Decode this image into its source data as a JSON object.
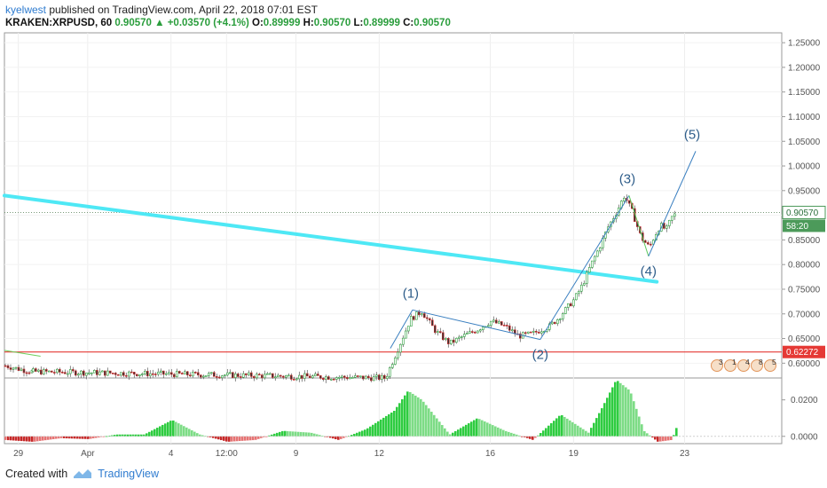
{
  "header": {
    "author": "kyelwest",
    "published_text": "published on TradingView.com, April 22, 2018 07:01 EST",
    "symbol": "KRAKEN:XRPUSD, 60",
    "last": "0.90570",
    "change": "+0.03570 (+4.1%)",
    "o_label": "O:",
    "o": "0.89999",
    "h_label": "H:",
    "h": "0.90570",
    "l_label": "L:",
    "l": "0.89999",
    "c_label": "C:",
    "c": "0.90570"
  },
  "footer": {
    "created_with": "Created with",
    "brand": "TradingView"
  },
  "colors": {
    "up": "#2a9d3c",
    "down": "#d32f2f",
    "trendline": "#4ee8f5",
    "wave": "#3a7fc0",
    "support": "#e53935",
    "volume_up": "#2ecc40",
    "volume_down": "#c62828"
  },
  "chart_data": {
    "type": "line",
    "price_axis": {
      "ticks": [
        "1.25000",
        "1.20000",
        "1.15000",
        "1.10000",
        "1.05000",
        "1.00000",
        "0.95000",
        "0.90000",
        "0.85000",
        "0.80000",
        "0.75000",
        "0.70000",
        "0.65000",
        "0.60000"
      ],
      "ylim": [
        0.57,
        1.27
      ],
      "current_label": "0.90570",
      "current_value": 0.9057,
      "countdown": "58:20",
      "support_label": "0.62272",
      "support_value": 0.62272
    },
    "indicator_axis": {
      "ticks": [
        "0.0200",
        "0.0000"
      ],
      "ylim": [
        -0.004,
        0.032
      ]
    },
    "time_axis": {
      "ticks": [
        {
          "label": "29",
          "t": 0.5
        },
        {
          "label": "Apr",
          "t": 3
        },
        {
          "label": "4",
          "t": 6
        },
        {
          "label": "12:00",
          "t": 8
        },
        {
          "label": "9",
          "t": 10.5
        },
        {
          "label": "12",
          "t": 13.5
        },
        {
          "label": "16",
          "t": 17.5
        },
        {
          "label": "19",
          "t": 20.5
        },
        {
          "label": "23",
          "t": 24.5
        }
      ],
      "xlim": [
        0,
        28
      ]
    },
    "price_series": {
      "t": [
        0,
        0.5,
        1,
        13.7,
        14,
        14.3,
        14.6,
        15,
        15.5,
        16,
        16.5,
        17,
        17.5,
        18,
        18.5,
        19,
        19.3,
        19.6,
        19.9,
        20.2,
        20.5,
        20.8,
        21.1,
        21.4,
        21.7,
        22,
        22.3,
        22.6,
        22.9,
        23.2,
        23.4,
        23.6,
        23.8,
        24,
        24.2
      ],
      "price": [
        0.595,
        0.588,
        0.583,
        0.57,
        0.61,
        0.65,
        0.69,
        0.705,
        0.665,
        0.64,
        0.655,
        0.668,
        0.685,
        0.675,
        0.655,
        0.66,
        0.668,
        0.675,
        0.69,
        0.71,
        0.73,
        0.76,
        0.8,
        0.835,
        0.875,
        0.905,
        0.94,
        0.905,
        0.855,
        0.835,
        0.86,
        0.88,
        0.87,
        0.895,
        0.9057
      ]
    },
    "trendline": {
      "from": {
        "t": 0,
        "price": 0.94
      },
      "to": {
        "t": 23.5,
        "price": 0.765
      }
    },
    "early_segment": {
      "from": {
        "t": 0,
        "price": 0.626
      },
      "to": {
        "t": 1.3,
        "price": 0.614
      }
    },
    "waves": [
      {
        "label": "(1)",
        "t": 14.7,
        "price": 0.708
      },
      {
        "label": "(2)",
        "t": 19.3,
        "price": 0.648
      },
      {
        "label": "(3)",
        "t": 22.5,
        "price": 0.94
      },
      {
        "label": "(4)",
        "t": 23.2,
        "price": 0.817
      },
      {
        "label": "(5)",
        "t": 24.9,
        "price": 1.03
      }
    ],
    "indicator_series": {
      "t": [
        0,
        1,
        2,
        3,
        4,
        5,
        6,
        7,
        8,
        9,
        10,
        11,
        12,
        13,
        14,
        14.5,
        15,
        16,
        17,
        18,
        19,
        20,
        21,
        21.5,
        22,
        22.5,
        23,
        23.5,
        24,
        24.2
      ],
      "value": [
        -0.002,
        -0.003,
        -0.001,
        -0.0015,
        0.001,
        0.001,
        0.009,
        0.001,
        -0.003,
        -0.002,
        0.003,
        0.002,
        -0.002,
        0.004,
        0.014,
        0.025,
        0.02,
        0.001,
        0.01,
        0.003,
        -0.002,
        0.012,
        0.002,
        0.016,
        0.031,
        0.025,
        0.003,
        -0.003,
        -0.002,
        0.006
      ]
    },
    "event_icons": [
      "3",
      "1",
      "4",
      "8",
      "5"
    ]
  }
}
